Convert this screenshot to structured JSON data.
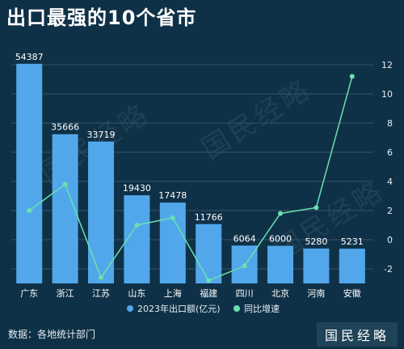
{
  "title": "出口最强的10个省市",
  "source": "数据：各地统计部门",
  "brand": "国民经略",
  "watermark": "国民经略",
  "colors": {
    "background": "#0f3147",
    "bar": "#52a7ea",
    "line": "#69e0b0",
    "grid": "#35546b"
  },
  "chart_data": {
    "type": "bar",
    "categories": [
      "广东",
      "浙江",
      "江苏",
      "山东",
      "上海",
      "福建",
      "四川",
      "北京",
      "河南",
      "安徽"
    ],
    "series": [
      {
        "name": "2023年出口额(亿元)",
        "type": "bar",
        "axis": "left",
        "values": [
          54387,
          35666,
          33719,
          19430,
          17478,
          11766,
          6064,
          6000,
          5280,
          5231
        ],
        "labels": [
          "54387",
          "35666",
          "33719",
          "19430",
          "17478",
          "11766",
          "6064",
          "6000",
          "5280",
          "5231"
        ]
      },
      {
        "name": "同比增速",
        "type": "line",
        "axis": "right",
        "values": [
          2.0,
          3.8,
          -2.6,
          1.0,
          1.5,
          -2.8,
          -1.8,
          1.8,
          2.2,
          11.2
        ]
      }
    ],
    "y_left": {
      "min": -4000,
      "max": 58000
    },
    "y_right": {
      "min": -3,
      "max": 13,
      "ticks": [
        -2,
        0,
        2,
        4,
        6,
        8,
        10,
        12
      ]
    },
    "grid": true,
    "legend_position": "bottom"
  }
}
